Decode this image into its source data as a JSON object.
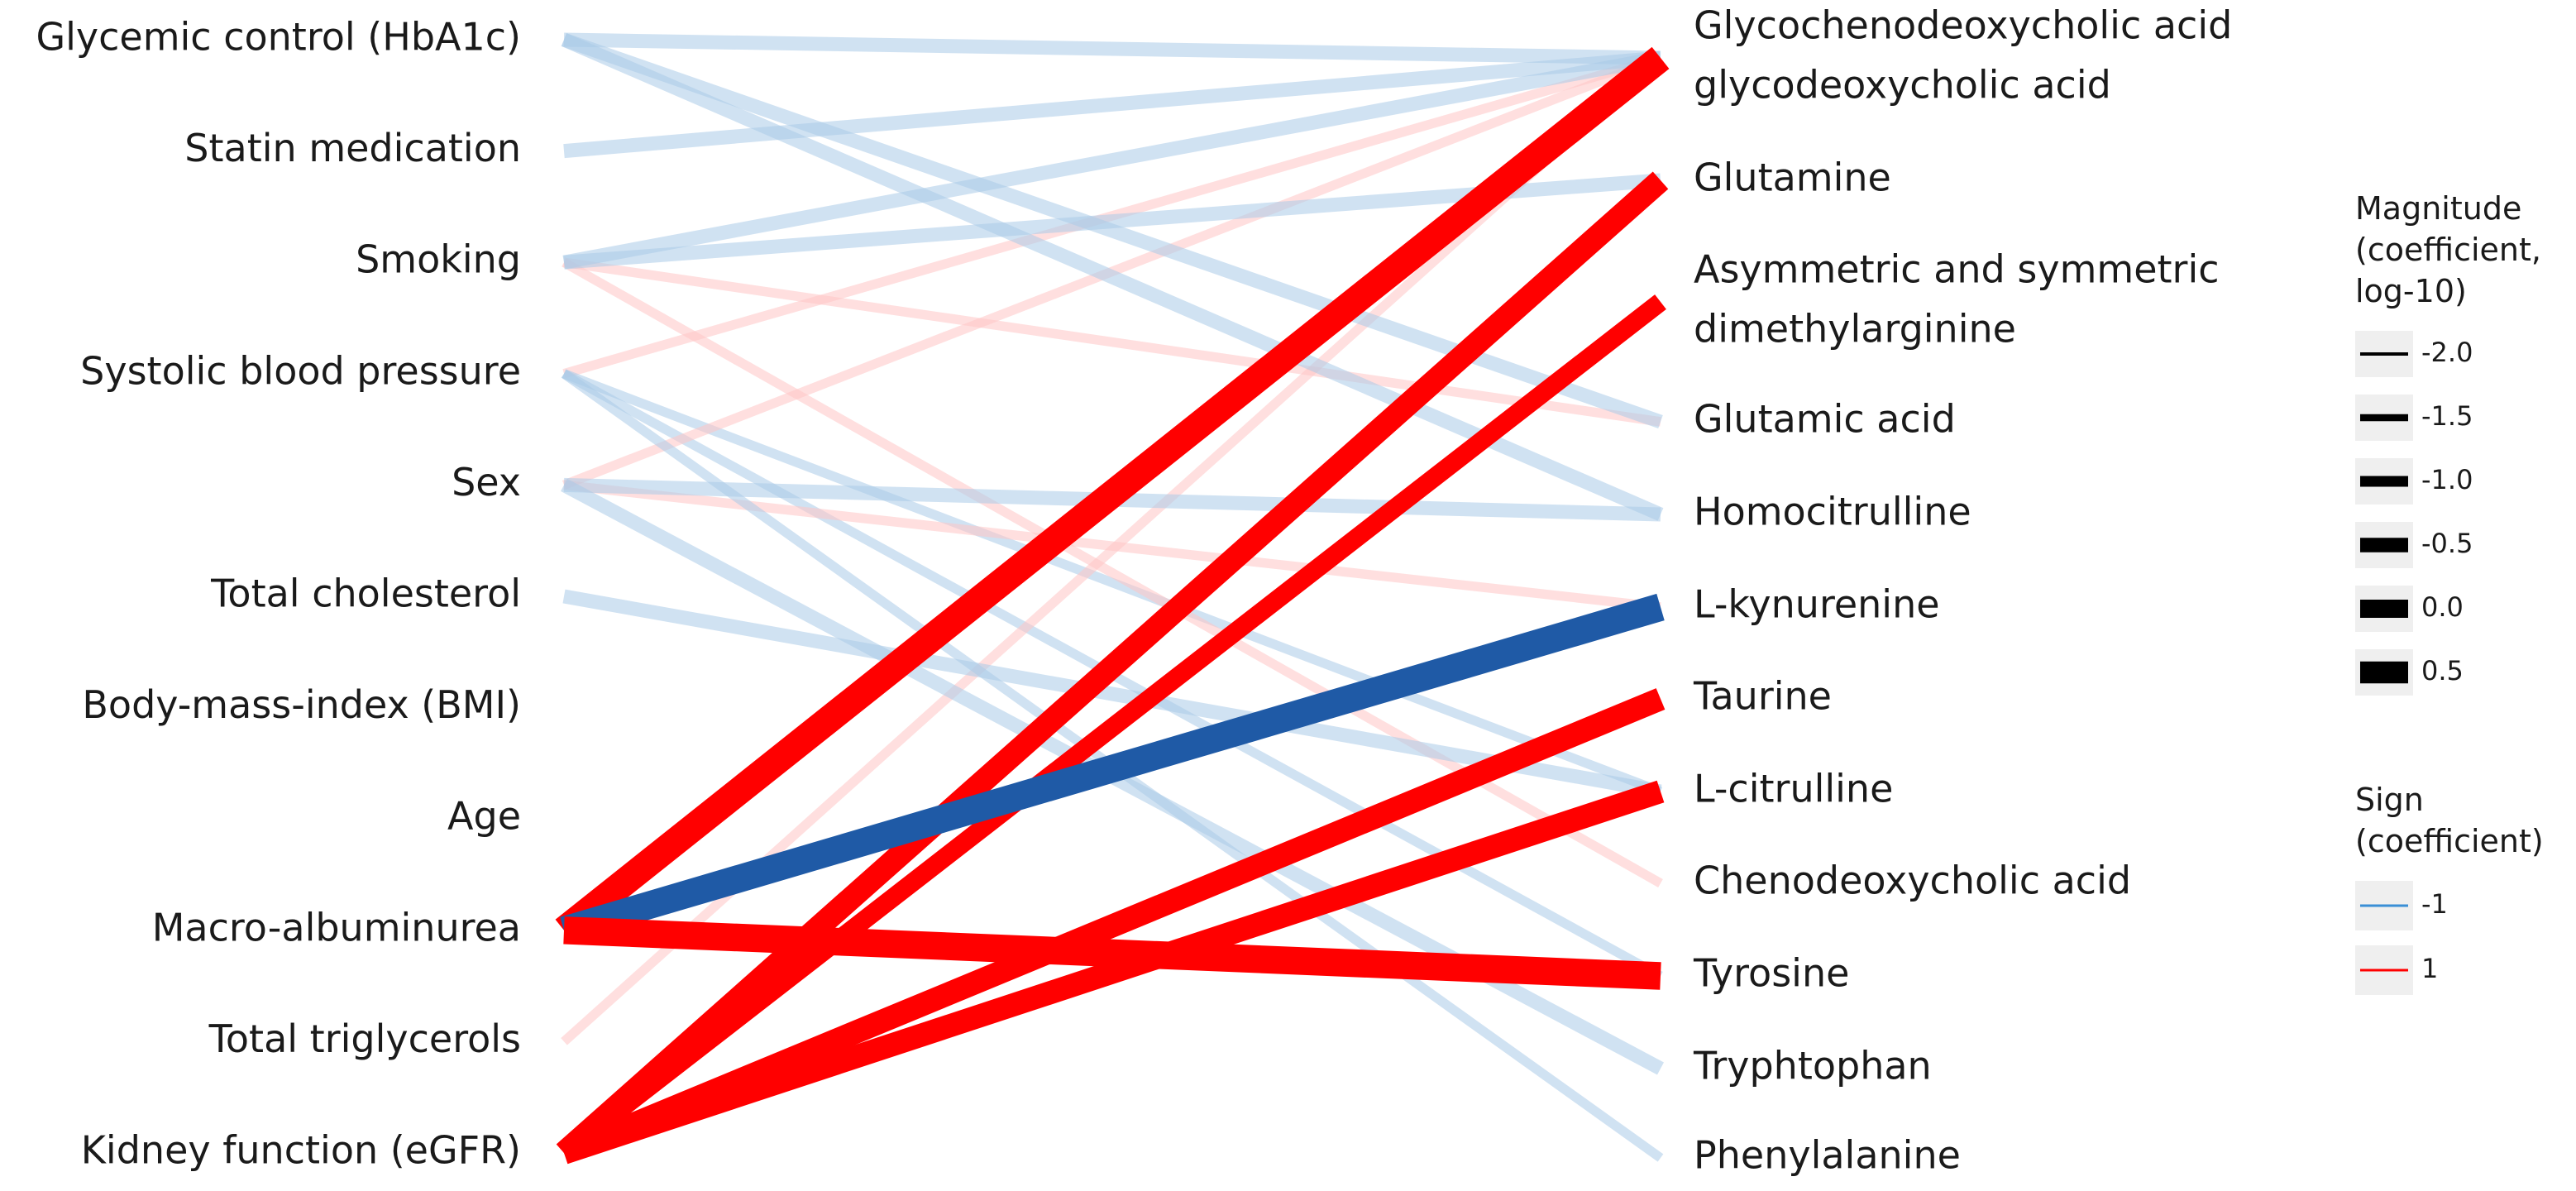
{
  "predictors": [
    "Glycemic control (HbA1c)",
    "Statin medication",
    "Smoking",
    "Systolic blood pressure",
    "Sex",
    "Total cholesterol",
    "Body-mass-index (BMI)",
    "Age",
    "Macro-albuminurea",
    "Total triglycerols",
    "Kidney function (eGFR)"
  ],
  "metabolites": [
    [
      "Glycochenodeoxycholic acid",
      "glycodeoxycholic acid"
    ],
    [
      "Glutamine"
    ],
    [
      "Asymmetric and symmetric",
      "dimethylarginine"
    ],
    [
      "Glutamic acid"
    ],
    [
      "Homocitrulline"
    ],
    [
      "L-kynurenine"
    ],
    [
      "Taurine"
    ],
    [
      "L-citrulline"
    ],
    [
      "Chenodeoxycholic acid"
    ],
    [
      "Tyrosine"
    ],
    [
      "Tryphtophan"
    ],
    [
      "Phenylalanine"
    ]
  ],
  "colors": {
    "negative": "#1f5aa6",
    "positive": "#ff0000",
    "faint_negative": "#a9cbe8",
    "faint_positive": "#ffc4c4"
  },
  "associations": [
    {
      "from": 0,
      "to": 0,
      "sign": -1,
      "magnitude": -1.0
    },
    {
      "from": 0,
      "to": 3,
      "sign": -1,
      "magnitude": -1.0
    },
    {
      "from": 0,
      "to": 4,
      "sign": -1,
      "magnitude": -1.0
    },
    {
      "from": 1,
      "to": 0,
      "sign": -1,
      "magnitude": -1.0
    },
    {
      "from": 2,
      "to": 0,
      "sign": -1,
      "magnitude": -1.0
    },
    {
      "from": 2,
      "to": 1,
      "sign": -1,
      "magnitude": -1.0
    },
    {
      "from": 2,
      "to": 3,
      "sign": 1,
      "magnitude": -1.5
    },
    {
      "from": 3,
      "to": 0,
      "sign": 1,
      "magnitude": -1.5
    },
    {
      "from": 3,
      "to": 7,
      "sign": -1,
      "magnitude": -1.5
    },
    {
      "from": 3,
      "to": 9,
      "sign": -1,
      "magnitude": -1.5
    },
    {
      "from": 4,
      "to": 0,
      "sign": 1,
      "magnitude": -1.5
    },
    {
      "from": 4,
      "to": 4,
      "sign": -1,
      "magnitude": -1.0
    },
    {
      "from": 4,
      "to": 5,
      "sign": 1,
      "magnitude": -1.5
    },
    {
      "from": 4,
      "to": 10,
      "sign": -1,
      "magnitude": -1.0
    },
    {
      "from": 5,
      "to": 7,
      "sign": -1,
      "magnitude": -1.0
    },
    {
      "from": 2,
      "to": 8,
      "sign": 1,
      "magnitude": -1.5
    },
    {
      "from": 9,
      "to": 0,
      "sign": 1,
      "magnitude": -1.5
    },
    {
      "from": 3,
      "to": 11,
      "sign": -1,
      "magnitude": -1.5
    },
    {
      "from": 8,
      "to": 0,
      "sign": 1,
      "magnitude": 0.5
    },
    {
      "from": 8,
      "to": 5,
      "sign": -1,
      "magnitude": 0.5
    },
    {
      "from": 8,
      "to": 9,
      "sign": 1,
      "magnitude": 0.5
    },
    {
      "from": 10,
      "to": 1,
      "sign": 1,
      "magnitude": 0.0
    },
    {
      "from": 10,
      "to": 2,
      "sign": 1,
      "magnitude": -0.5
    },
    {
      "from": 10,
      "to": 6,
      "sign": 1,
      "magnitude": 0.0
    },
    {
      "from": 10,
      "to": 7,
      "sign": 1,
      "magnitude": 0.0
    }
  ],
  "legend": {
    "magnitude_title": [
      "Magnitude",
      "(coefficient,",
      "log-10)"
    ],
    "magnitude_items": [
      "-2.0",
      "-1.5",
      "-1.0",
      "-0.5",
      "0.0",
      "0.5"
    ],
    "sign_title": [
      "Sign",
      "(coefficient)"
    ],
    "sign_items": [
      {
        "label": "-1",
        "color": "#3a8fd6"
      },
      {
        "label": "1",
        "color": "#ff0000"
      }
    ]
  }
}
